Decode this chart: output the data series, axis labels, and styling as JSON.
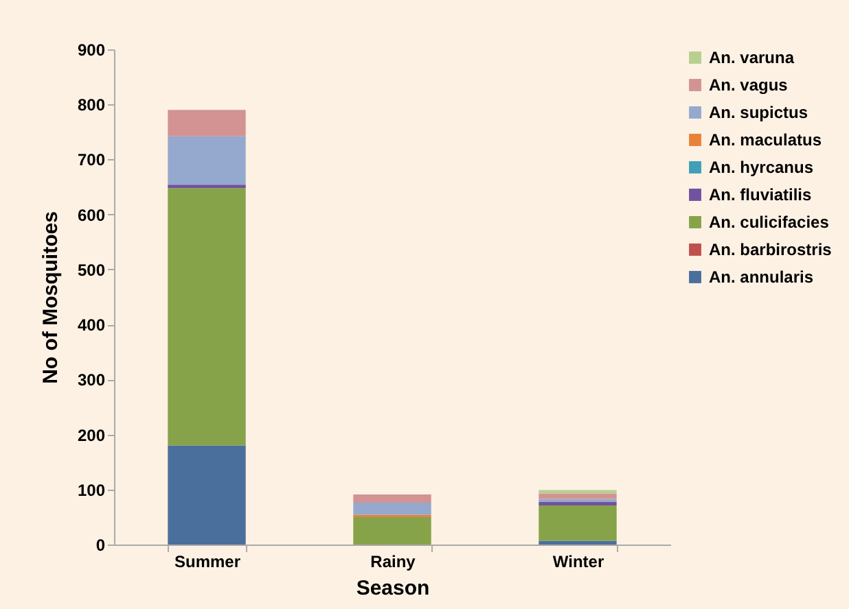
{
  "chart_data": {
    "type": "bar",
    "stacked": true,
    "xlabel": "Season",
    "ylabel": "No of Mosquitoes",
    "categories": [
      "Summer",
      "Rainy",
      "Winter"
    ],
    "series": [
      {
        "name": "An. annularis",
        "color": "#4a6f9c",
        "values": [
          180,
          0,
          7
        ]
      },
      {
        "name": "An. barbirostris",
        "color": "#c0504d",
        "values": [
          0,
          0,
          0
        ]
      },
      {
        "name": "An. culicifacies",
        "color": "#86a34a",
        "values": [
          468,
          50,
          64
        ]
      },
      {
        "name": "An. fluviatilis",
        "color": "#7052a0",
        "values": [
          6,
          0,
          7
        ]
      },
      {
        "name": "An. hyrcanus",
        "color": "#3fa0b8",
        "values": [
          0,
          0,
          0
        ]
      },
      {
        "name": "An. maculatus",
        "color": "#e8823a",
        "values": [
          0,
          4,
          0
        ]
      },
      {
        "name": "An. supictus",
        "color": "#94a9cd",
        "values": [
          88,
          22,
          5
        ]
      },
      {
        "name": "An. vagus",
        "color": "#d39392",
        "values": [
          48,
          15,
          10
        ]
      },
      {
        "name": "An. varuna",
        "color": "#b7d08f",
        "values": [
          0,
          0,
          6
        ]
      }
    ],
    "ylim": [
      0,
      900
    ],
    "yticks": [
      0,
      100,
      200,
      300,
      400,
      500,
      600,
      700,
      800,
      900
    ],
    "grid": false,
    "legend": "right"
  }
}
